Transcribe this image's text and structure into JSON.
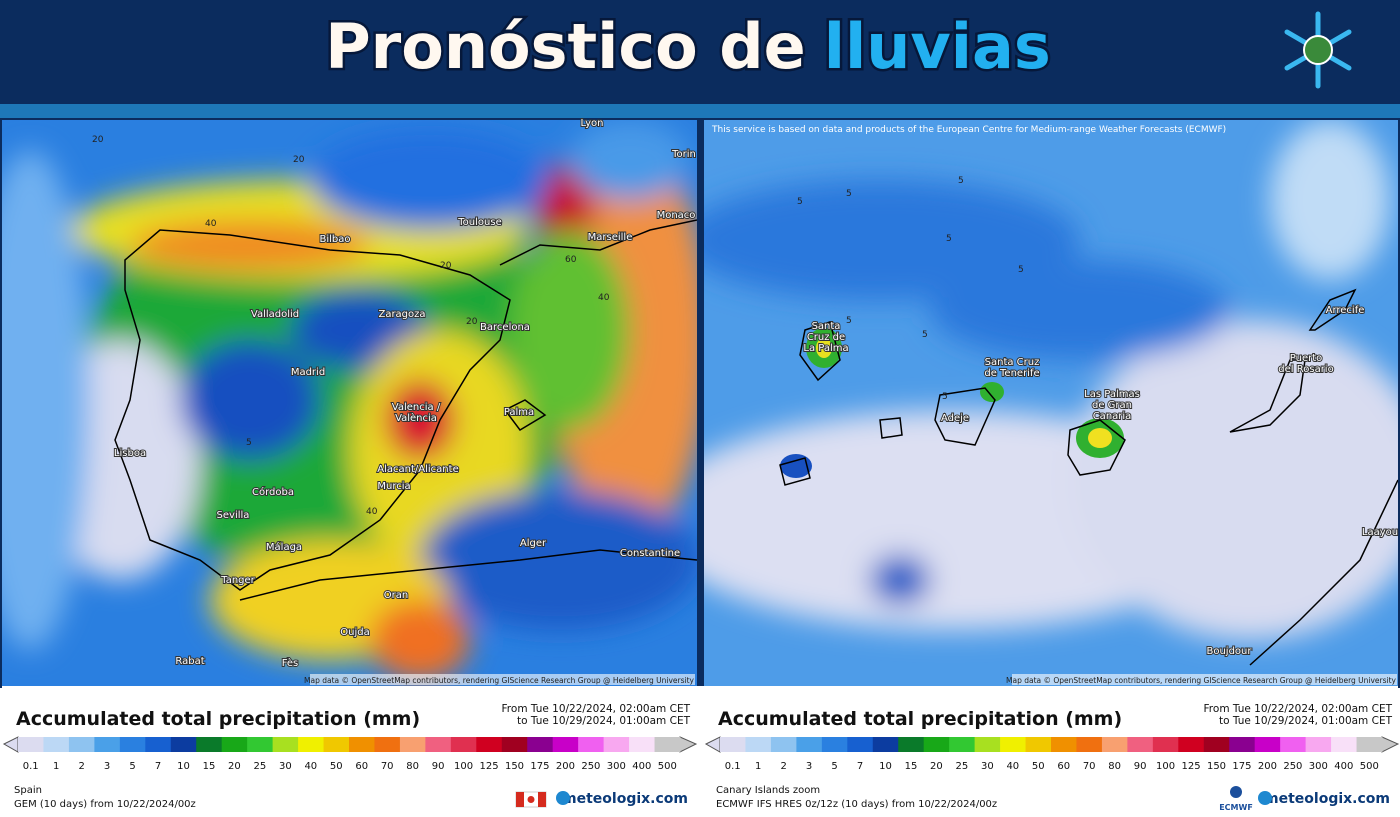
{
  "header": {
    "title_part1": "Pronóstico de",
    "title_part2": "lluvias"
  },
  "scale_values": [
    0.1,
    1,
    2,
    3,
    5,
    7,
    10,
    15,
    20,
    25,
    30,
    40,
    50,
    60,
    70,
    80,
    90,
    100,
    125,
    150,
    175,
    200,
    250,
    300,
    400,
    500
  ],
  "scale_colors": [
    "#dcdcf0",
    "#bcd8f5",
    "#8ec3f0",
    "#4aa0e8",
    "#2a80e0",
    "#1760d0",
    "#0c3ca0",
    "#0a7a2a",
    "#18a818",
    "#32c832",
    "#a8e020",
    "#f0f000",
    "#f0c800",
    "#f09000",
    "#f07010",
    "#f8a070",
    "#f06080",
    "#e03050",
    "#d00020",
    "#a00020",
    "#8a0090",
    "#c800c8",
    "#f060f0",
    "#f8a8f0",
    "#f8e0f8",
    "#c8c8c8"
  ],
  "panels": [
    {
      "map_labels": [
        {
          "lines": [
            "Lyon"
          ]
        },
        {
          "lines": [
            "Torin"
          ]
        },
        {
          "lines": [
            "Toulouse"
          ]
        },
        {
          "lines": [
            "Monaco"
          ]
        },
        {
          "lines": [
            "Marseille"
          ]
        },
        {
          "lines": [
            "Bilbao"
          ]
        },
        {
          "lines": [
            "Valladolid"
          ]
        },
        {
          "lines": [
            "Zaragoza"
          ]
        },
        {
          "lines": [
            "Barcelona"
          ]
        },
        {
          "lines": [
            "Madrid"
          ]
        },
        {
          "lines": [
            "Palma"
          ]
        },
        {
          "lines": [
            "Valencia /",
            "València"
          ]
        },
        {
          "lines": [
            "Lisboa"
          ]
        },
        {
          "lines": [
            "Alacant/Alicante"
          ]
        },
        {
          "lines": [
            "Murcia"
          ]
        },
        {
          "lines": [
            "Córdoba"
          ]
        },
        {
          "lines": [
            "Sevilla"
          ]
        },
        {
          "lines": [
            "Málaga"
          ]
        },
        {
          "lines": [
            "Alger"
          ]
        },
        {
          "lines": [
            "Constantine"
          ]
        },
        {
          "lines": [
            "Tanger"
          ]
        },
        {
          "lines": [
            "Oran"
          ]
        },
        {
          "lines": [
            "Oujda"
          ]
        },
        {
          "lines": [
            "Rabat"
          ]
        },
        {
          "lines": [
            "Fès"
          ]
        }
      ],
      "contour_labels": [
        20,
        40,
        60,
        40,
        20,
        5,
        40,
        20,
        20
      ],
      "attribution": "Map data © OpenStreetMap contributors, rendering GIScience Research Group @ Heidelberg University",
      "legend_title": "Accumulated total precipitation (mm)",
      "period": [
        "From Tue 10/22/2024, 02:00am CET",
        "to Tue 10/29/2024, 01:00am CET"
      ],
      "region": "Spain",
      "model": "GEM (10 days) from 10/22/2024/00z",
      "brand": "meteologix.com"
    },
    {
      "notice": "This service is based on data and products of the European Centre for Medium-range Weather Forecasts (ECMWF)",
      "map_labels": [
        {
          "lines": [
            "Santa",
            "Cruz de",
            "La Palma"
          ]
        },
        {
          "lines": [
            "Santa Cruz",
            "de Tenerife"
          ]
        },
        {
          "lines": [
            "Adeje"
          ]
        },
        {
          "lines": [
            "Las Palmas",
            "de Gran",
            "Canaria"
          ]
        },
        {
          "lines": [
            "Puerto",
            "del Rosario"
          ]
        },
        {
          "lines": [
            "Arrecife"
          ]
        },
        {
          "lines": [
            "Boujdour"
          ]
        },
        {
          "lines": [
            "Laayou"
          ]
        }
      ],
      "contour_labels": [
        5,
        5,
        5,
        5,
        5,
        5,
        5,
        5
      ],
      "attribution": "Map data © OpenStreetMap contributors, rendering GIScience Research Group @ Heidelberg University",
      "legend_title": "Accumulated total precipitation (mm)",
      "period": [
        "From Tue 10/22/2024, 02:00am CET",
        "to Tue 10/29/2024, 01:00am CET"
      ],
      "region": "Canary Islands zoom",
      "model": "ECMWF IFS HRES 0z/12z (10 days) from 10/22/2024/00z",
      "logo": "ECMWF",
      "brand": "meteologix.com"
    }
  ]
}
